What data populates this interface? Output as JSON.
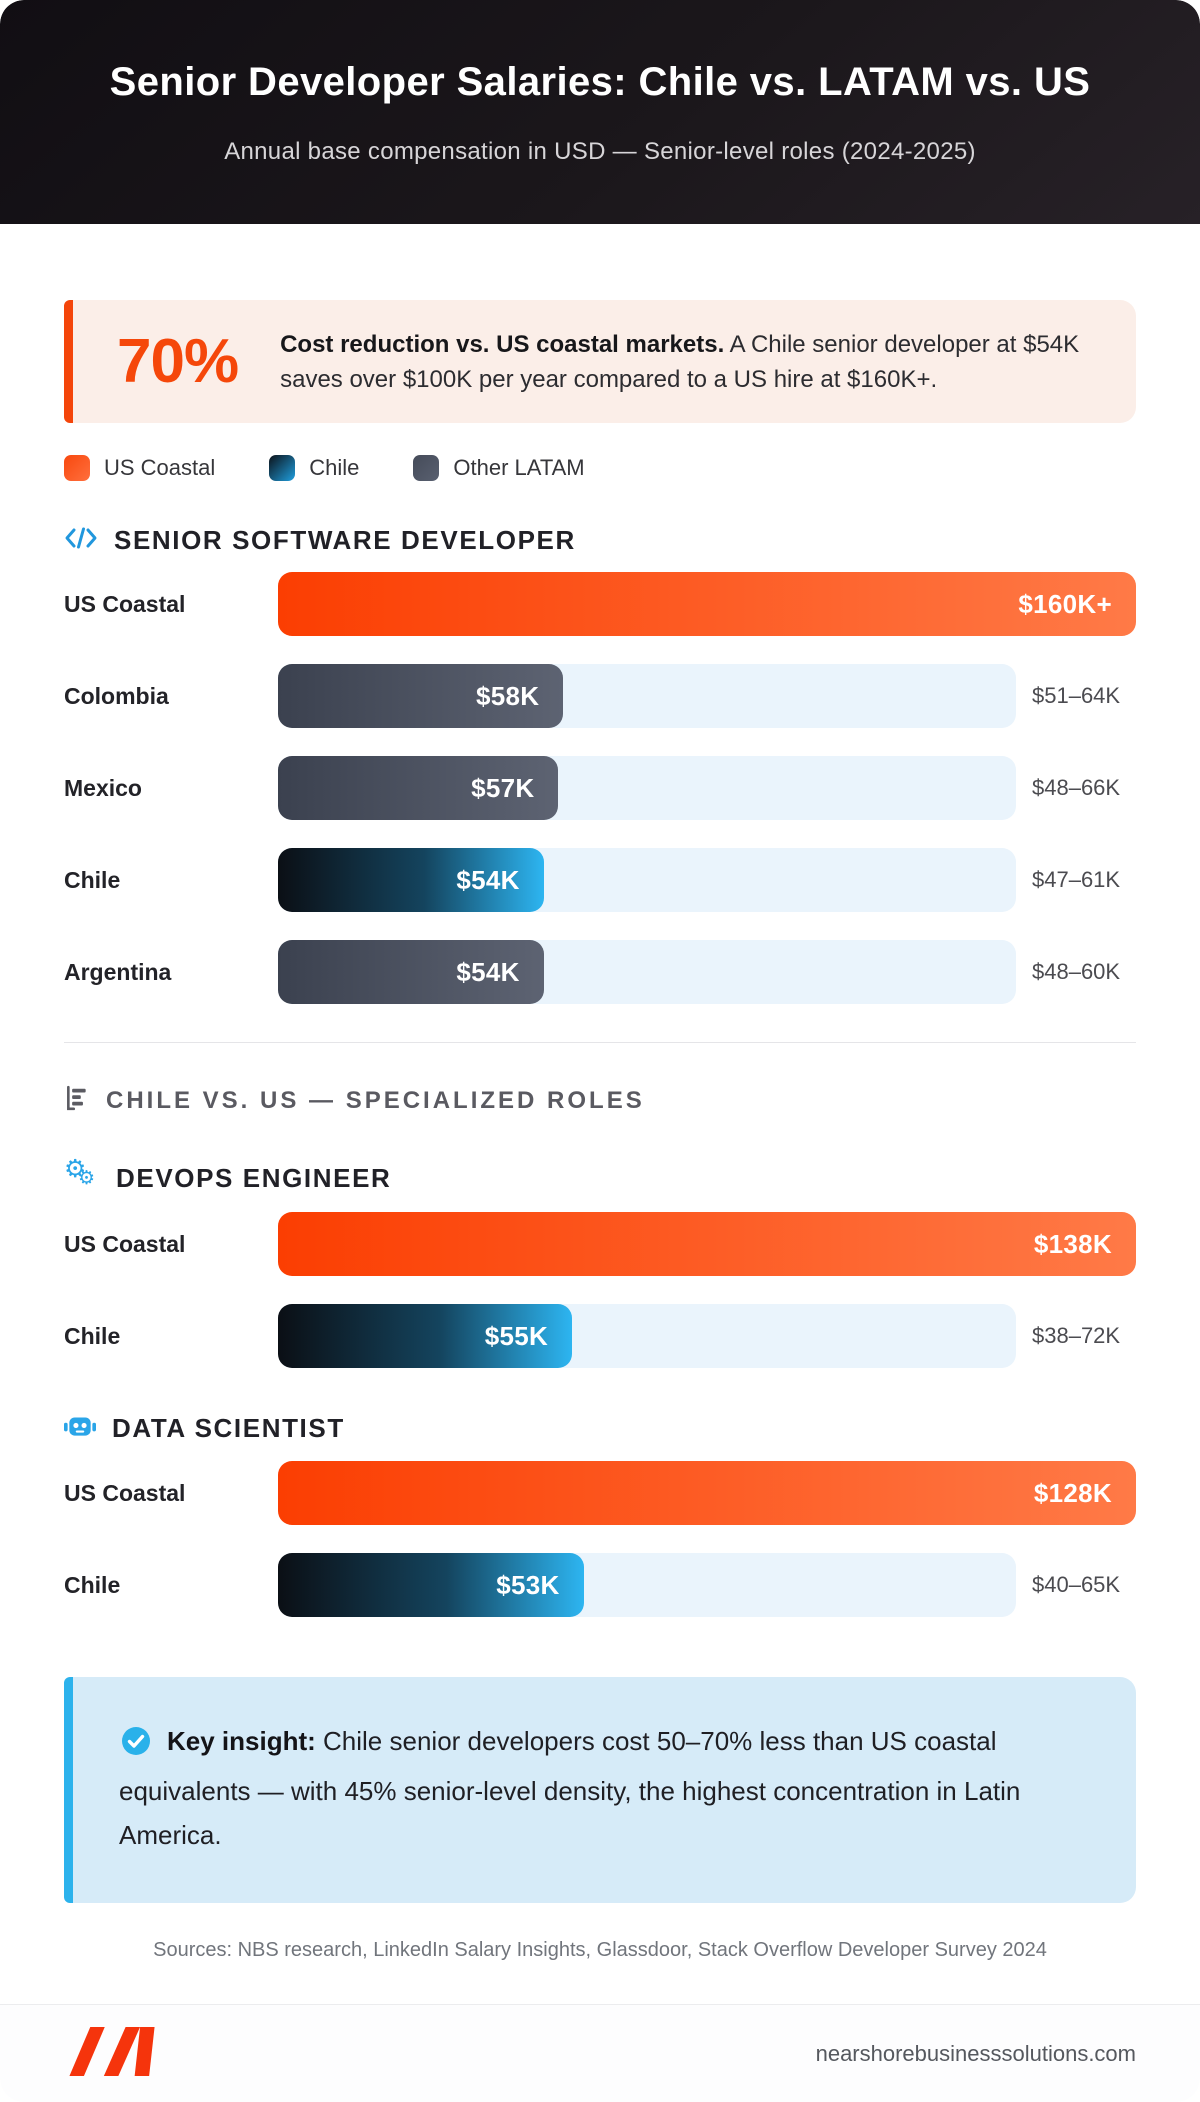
{
  "header": {
    "title": "Senior Developer Salaries: Chile vs. LATAM vs. US",
    "subtitle": "Annual base compensation in USD — Senior-level roles (2024-2025)"
  },
  "stat": {
    "value": "70%",
    "bold": "Cost reduction vs. US coastal markets.",
    "text": " A Chile senior developer at $54K saves over $100K per year compared to a US hire at $160K+."
  },
  "legend": [
    {
      "label": "US Coastal",
      "variant": "us"
    },
    {
      "label": "Chile",
      "variant": "chile"
    },
    {
      "label": "Other LATAM",
      "variant": "latam"
    }
  ],
  "sections": {
    "specialized": {
      "label": "CHILE VS. US — SPECIALIZED ROLES",
      "icon": "bar-chart-icon"
    }
  },
  "chart_data": [
    {
      "type": "bar",
      "title": "SENIOR SOFTWARE DEVELOPER",
      "icon": "code-icon",
      "unit": "USD thousands, annual",
      "scale_max_k": 150,
      "rows": [
        {
          "label": "US Coastal",
          "value_label": "$160K+",
          "value_k": 160,
          "range": null,
          "variant": "us",
          "full": true
        },
        {
          "label": "Colombia",
          "value_label": "$58K",
          "value_k": 58,
          "range": "$51–64K",
          "variant": "latam",
          "full": false
        },
        {
          "label": "Mexico",
          "value_label": "$57K",
          "value_k": 57,
          "range": "$48–66K",
          "variant": "latam",
          "full": false
        },
        {
          "label": "Chile",
          "value_label": "$54K",
          "value_k": 54,
          "range": "$47–61K",
          "variant": "chile",
          "full": false
        },
        {
          "label": "Argentina",
          "value_label": "$54K",
          "value_k": 54,
          "range": "$48–60K",
          "variant": "latam",
          "full": false
        }
      ]
    },
    {
      "type": "bar",
      "title": "DEVOPS ENGINEER",
      "icon": "gears-icon",
      "unit": "USD thousands, annual",
      "scale_max_k": 138,
      "rows": [
        {
          "label": "US Coastal",
          "value_label": "$138K",
          "value_k": 138,
          "range": null,
          "variant": "us",
          "full": true
        },
        {
          "label": "Chile",
          "value_label": "$55K",
          "value_k": 55,
          "range": "$38–72K",
          "variant": "chile",
          "full": false
        }
      ]
    },
    {
      "type": "bar",
      "title": "DATA SCIENTIST",
      "icon": "robot-icon",
      "unit": "USD thousands, annual",
      "scale_max_k": 128,
      "rows": [
        {
          "label": "US Coastal",
          "value_label": "$128K",
          "value_k": 128,
          "range": null,
          "variant": "us",
          "full": true
        },
        {
          "label": "Chile",
          "value_label": "$53K",
          "value_k": 53,
          "range": "$40–65K",
          "variant": "chile",
          "full": false
        }
      ]
    }
  ],
  "insight": {
    "bold": "Key insight:",
    "text": " Chile senior developers cost 50–70% less than US coastal equivalents — with 45% senior-level density, the highest concentration in Latin America."
  },
  "sources": "Sources: NBS research, LinkedIn Salary Insights, Glassdoor, Stack Overflow Developer Survey 2024",
  "footer": {
    "domain": "nearshorebusinesssolutions.com"
  },
  "colors": {
    "accent_orange": "#f5470a",
    "bar_orange_start": "#fb3e02",
    "bar_orange_end": "#ff7a47",
    "chile_blue": "#2db5f1",
    "slate_gray": "#4a5160",
    "track_blue": "#eaf4fc",
    "stat_bg": "#fbeee8",
    "insight_bg": "#d6ebf8",
    "insight_border": "#2cb2ec",
    "header_bg": "#18141a",
    "icon_blue": "#2aa5e8",
    "logo_red": "#f5340c"
  }
}
